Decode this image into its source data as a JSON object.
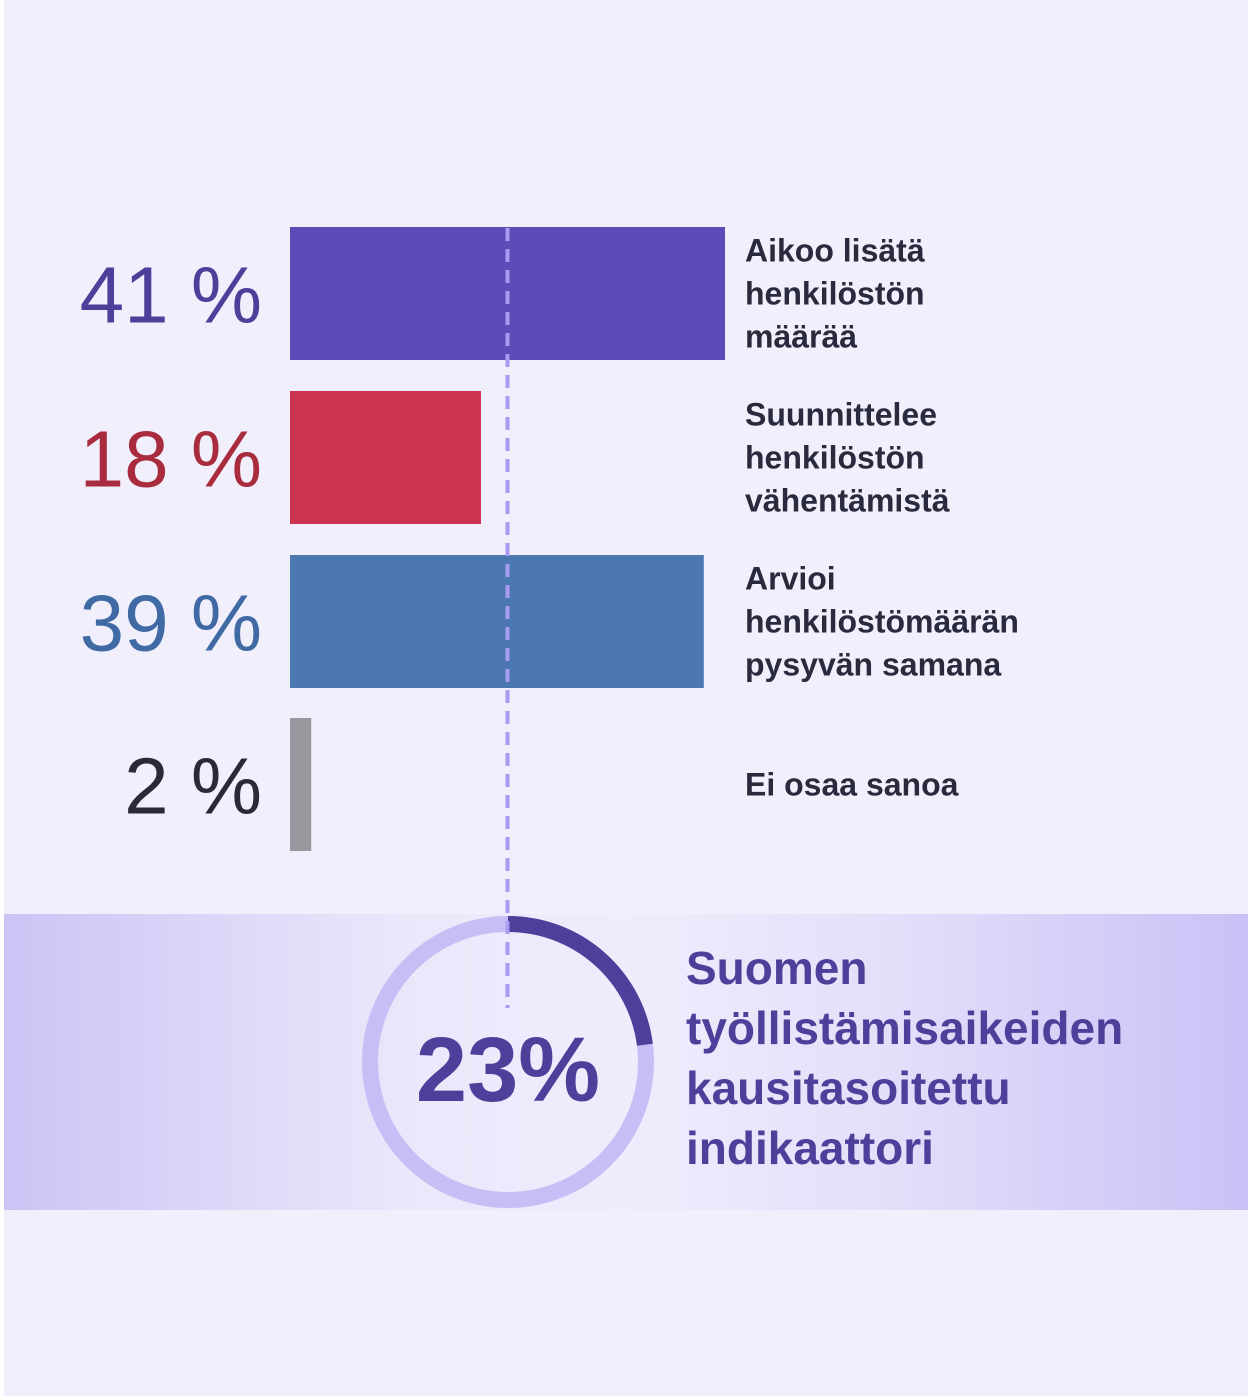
{
  "chart_data": {
    "type": "bar",
    "orientation": "horizontal",
    "title": "",
    "xlabel": "",
    "ylabel": "",
    "xlim": [
      0,
      41
    ],
    "categories": [
      [
        "Aikoo lisätä",
        "henkilöstön",
        "määrää"
      ],
      [
        "Suunnittelee",
        "henkilöstön",
        "vähentämistä"
      ],
      [
        "Arvioi",
        "henkilöstömäärän",
        "pysyvän samana"
      ],
      [
        "Ei osaa sanoa"
      ]
    ],
    "values": [
      41,
      18,
      39,
      2
    ],
    "value_labels": [
      "41 %",
      "18 %",
      "39 %",
      "2 %"
    ],
    "colors": [
      "#5c4cb7",
      "#cc344d",
      "#4b78b0",
      "#99979d"
    ],
    "label_colors": [
      "#4d3f9a",
      "#a82c3d",
      "#3f6aa3",
      "#2a2a36"
    ],
    "reference_line": {
      "value": 20.5,
      "style": "dashed",
      "color": "#a99af2"
    },
    "indicator": {
      "value": 23,
      "value_label": "23%",
      "max": 100,
      "label_lines": [
        "Suomen",
        "työllistämisaikeiden",
        "kausitasoitettu",
        "indikaattori"
      ],
      "progress_color": "#4e3f9a",
      "track_color": "#c6bff6",
      "text_color": "#4e3f9a"
    },
    "grid": false,
    "legend": "none"
  }
}
